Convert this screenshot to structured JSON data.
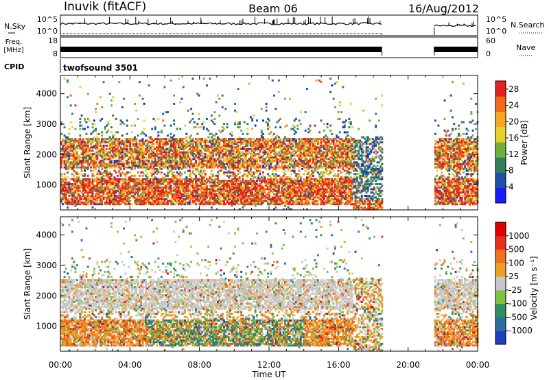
{
  "header": {
    "station": "Inuvik (fitACF)",
    "beam": "Beam 06",
    "date": "16/Aug/2012"
  },
  "noise_panel": {
    "left_label": "N.Sky",
    "right_label": "N.Search",
    "left_ticks": [
      "10^5",
      "10^0"
    ],
    "right_ticks": [
      "10^5",
      "10^0"
    ]
  },
  "freq_panel": {
    "left_label_line1": "Freq.",
    "left_label_line2": "[MHz]",
    "right_label": "Nave",
    "left_ticks": [
      "18",
      "8"
    ],
    "right_ticks": [
      "60",
      "0"
    ]
  },
  "cpid_panel": {
    "label": "CPID",
    "value": "twofsound 3501"
  },
  "x_axis": {
    "label": "Time UT",
    "ticks": [
      "00:00",
      "04:00",
      "08:00",
      "12:00",
      "16:00",
      "20:00",
      "00:00"
    ]
  },
  "chart_data": [
    {
      "type": "heatmap",
      "name": "power",
      "ylabel": "Slant Range [km]",
      "xlabel": "",
      "x_range_hours": [
        0,
        24
      ],
      "ylim": [
        180,
        4600
      ],
      "y_ticks": [
        "1000",
        "2000",
        "3000",
        "4000"
      ],
      "data_gap_hours": [
        18.5,
        21.5
      ],
      "colorbar": {
        "label": "Power [dB]",
        "ticks": [
          "4",
          "8",
          "12",
          "16",
          "20",
          "24",
          "28"
        ],
        "colors": [
          "#1a1aff",
          "#1f4fa8",
          "#2f7f5f",
          "#6fae3f",
          "#e8d02a",
          "#f5a623",
          "#f06a1a",
          "#e81f1f"
        ],
        "range": [
          0,
          30
        ]
      }
    },
    {
      "type": "heatmap",
      "name": "velocity",
      "ylabel": "Slant Range [km]",
      "xlabel": "Time UT",
      "x_range_hours": [
        0,
        24
      ],
      "ylim": [
        180,
        4600
      ],
      "y_ticks": [
        "1000",
        "2000",
        "3000",
        "4000"
      ],
      "data_gap_hours": [
        18.5,
        21.5
      ],
      "colorbar": {
        "label": "Velocity [m s⁻¹]",
        "ticks": [
          "1000",
          "500",
          "100",
          "25",
          "-25",
          "-100",
          "-500",
          "-1000"
        ],
        "colors": [
          "#1a3fc0",
          "#2b6fa0",
          "#2f8f5f",
          "#7fc23f",
          "#c8c8c8",
          "#f0a020",
          "#f07020",
          "#e83018",
          "#e00000"
        ]
      }
    }
  ]
}
